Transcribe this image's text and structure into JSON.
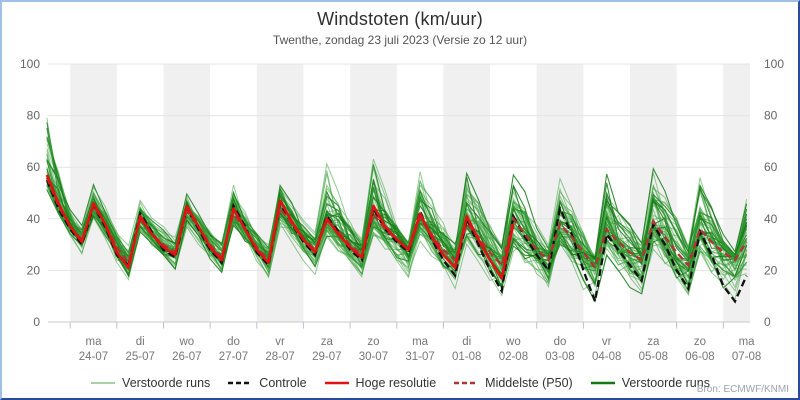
{
  "window": {
    "title": "Windstoten (km/uur)",
    "subtitle": "Twenthe, zondag 23 juli 2023 (Versie zo 12 uur)",
    "source": "Bron: ECMWF/KNMI"
  },
  "colors": {
    "band": "#f0f0f0",
    "gridline": "#e4e4e4",
    "axis_line": "#c8c8c8",
    "tick": "#b4c2de",
    "y_label": "#666666",
    "x_label": "#777777",
    "ensemble_light": "#3aa03a",
    "ensemble_dark": "#157a15",
    "controle": "#111111",
    "hoge_resolutie": "#e11212",
    "p50": "#b03434",
    "legend_pale_green": "#a8d0a8",
    "border_light": "#9fc0e8",
    "border_dark": "#2a4a9d"
  },
  "legend": {
    "items": [
      {
        "label": "Verstoorde runs",
        "color": "#a8d0a8",
        "dash": "",
        "width": 2
      },
      {
        "label": "Controle",
        "color": "#111111",
        "dash": "5 3",
        "width": 2.4
      },
      {
        "label": "Hoge resolutie",
        "color": "#e11212",
        "dash": "",
        "width": 2.6
      },
      {
        "label": "Middelste (P50)",
        "color": "#b03434",
        "dash": "5 3",
        "width": 2.4
      },
      {
        "label": "Verstoorde runs",
        "color": "#157a15",
        "dash": "",
        "width": 2.4
      }
    ]
  },
  "chart_data": {
    "type": "line",
    "title": "Windstoten (km/uur)",
    "subtitle": "Twenthe, zondag 23 juli 2023 (Versie zo 12 uur)",
    "ylabel": "km/uur",
    "ylim": [
      0,
      100
    ],
    "yticks": [
      0,
      20,
      40,
      60,
      80,
      100
    ],
    "x_start": "zo 23-07 12:00",
    "x_step_hours": 6,
    "n_points": 61,
    "grid": true,
    "legend_position": "bottom",
    "days": [
      {
        "dow": "ma",
        "date": "24-07"
      },
      {
        "dow": "di",
        "date": "25-07"
      },
      {
        "dow": "wo",
        "date": "26-07"
      },
      {
        "dow": "do",
        "date": "27-07"
      },
      {
        "dow": "vr",
        "date": "28-07"
      },
      {
        "dow": "za",
        "date": "29-07"
      },
      {
        "dow": "zo",
        "date": "30-07"
      },
      {
        "dow": "ma",
        "date": "31-07"
      },
      {
        "dow": "di",
        "date": "01-08"
      },
      {
        "dow": "wo",
        "date": "02-08"
      },
      {
        "dow": "do",
        "date": "03-08"
      },
      {
        "dow": "vr",
        "date": "04-08"
      },
      {
        "dow": "za",
        "date": "05-08"
      },
      {
        "dow": "zo",
        "date": "06-08"
      },
      {
        "dow": "ma",
        "date": "07-08"
      }
    ],
    "series": [
      {
        "name": "Controle",
        "style": "dashed",
        "color": "#111111",
        "values": [
          55,
          44,
          36,
          30,
          45,
          37,
          26,
          22,
          42,
          35,
          28,
          25,
          44,
          36,
          28,
          23,
          45,
          37,
          27,
          22,
          46,
          38,
          31,
          26,
          41,
          35,
          28,
          24,
          44,
          36,
          31,
          27,
          43,
          32,
          24,
          18,
          40,
          30,
          20,
          12,
          41,
          33,
          26,
          20,
          44,
          34,
          20,
          8,
          34,
          28,
          22,
          16,
          38,
          30,
          20,
          13,
          35,
          26,
          14,
          8,
          18
        ]
      },
      {
        "name": "Hoge resolutie",
        "style": "solid",
        "color": "#e11212",
        "values": [
          57,
          46,
          37,
          31,
          46,
          38,
          27,
          21,
          41,
          34,
          29,
          26,
          45,
          37,
          29,
          24,
          44,
          36,
          28,
          23,
          47,
          39,
          32,
          27,
          40,
          34,
          29,
          25,
          45,
          37,
          32,
          28,
          42,
          33,
          26,
          21,
          41,
          32,
          24,
          17,
          38
        ]
      },
      {
        "name": "Middelste (P50)",
        "style": "dashed",
        "color": "#b03434",
        "values": [
          56,
          45,
          37,
          32,
          45,
          38,
          29,
          23,
          40,
          34,
          30,
          27,
          43,
          37,
          30,
          25,
          42,
          36,
          29,
          24,
          44,
          38,
          32,
          28,
          39,
          35,
          30,
          26,
          42,
          36,
          32,
          28,
          40,
          34,
          28,
          24,
          38,
          33,
          27,
          22,
          40,
          34,
          28,
          24,
          38,
          33,
          27,
          21,
          36,
          31,
          27,
          24,
          39,
          33,
          27,
          22,
          36,
          31,
          27,
          24,
          31
        ]
      }
    ],
    "ensemble": {
      "name": "Verstoorde runs",
      "count": 50,
      "seed": 1234,
      "color_light": "#3aa03a",
      "color_dark": "#157a15",
      "envelope_lo": [
        50,
        41,
        33,
        26,
        39,
        32,
        22,
        15,
        33,
        28,
        23,
        19,
        36,
        30,
        23,
        17,
        35,
        29,
        21,
        15,
        36,
        30,
        24,
        18,
        31,
        26,
        20,
        14,
        31,
        26,
        20,
        13,
        29,
        24,
        17,
        10,
        29,
        23,
        15,
        7,
        26,
        21,
        14,
        9,
        26,
        20,
        12,
        5,
        23,
        18,
        12,
        8,
        26,
        19,
        12,
        7,
        23,
        16,
        9,
        6,
        12
      ],
      "envelope_hi": [
        81,
        62,
        46,
        39,
        55,
        46,
        36,
        30,
        50,
        42,
        37,
        34,
        52,
        44,
        37,
        33,
        55,
        45,
        37,
        32,
        58,
        48,
        40,
        35,
        62,
        50,
        42,
        34,
        68,
        55,
        44,
        33,
        65,
        52,
        42,
        33,
        66,
        52,
        40,
        30,
        60,
        50,
        40,
        32,
        58,
        48,
        38,
        30,
        65,
        55,
        42,
        33,
        68,
        54,
        42,
        30,
        60,
        48,
        36,
        28,
        55
      ]
    }
  }
}
